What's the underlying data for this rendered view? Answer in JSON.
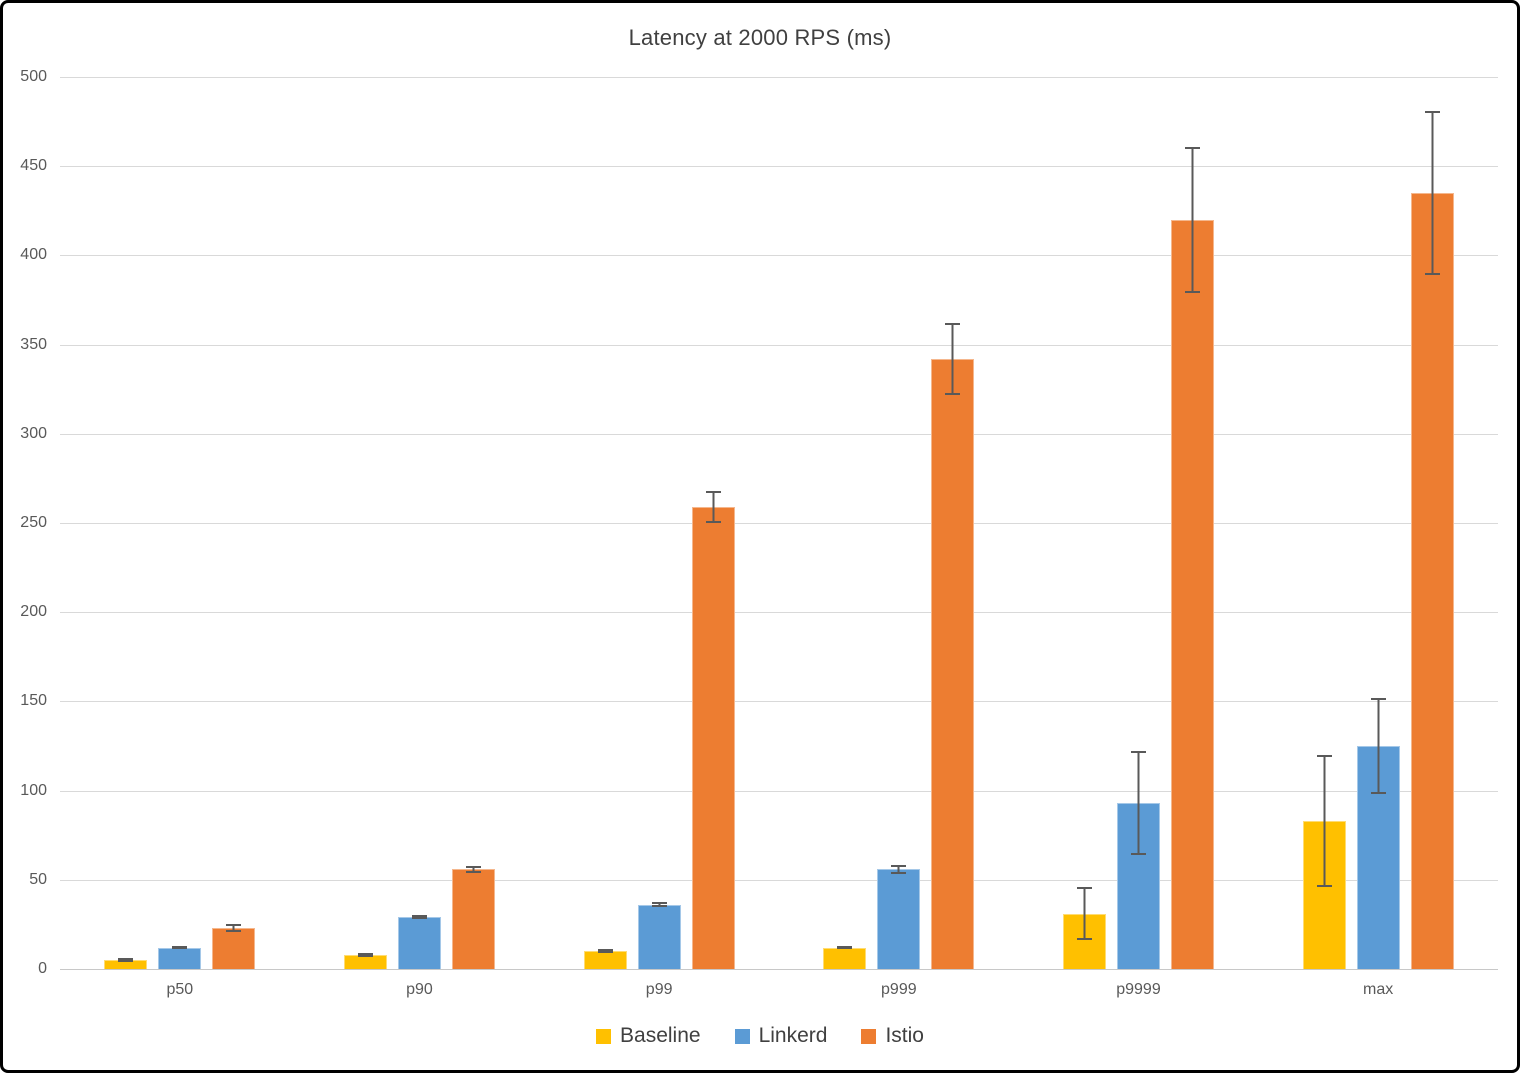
{
  "chart_data": {
    "type": "bar",
    "title": "Latency at 2000 RPS (ms)",
    "xlabel": "",
    "ylabel": "",
    "categories": [
      "p50",
      "p90",
      "p99",
      "p999",
      "p9999",
      "max"
    ],
    "series": [
      {
        "name": "Baseline",
        "color": "#FFC000",
        "values": [
          5,
          8,
          10,
          12,
          31,
          83
        ],
        "errors": [
          1,
          1,
          1,
          1,
          15,
          37
        ]
      },
      {
        "name": "Linkerd",
        "color": "#5B9BD5",
        "values": [
          12,
          29,
          36,
          56,
          93,
          125
        ],
        "errors": [
          1,
          1,
          1.5,
          2.5,
          29,
          27
        ]
      },
      {
        "name": "Istio",
        "color": "#ED7D31",
        "values": [
          23,
          56,
          259,
          342,
          420,
          435
        ],
        "errors": [
          2.5,
          2,
          9,
          20,
          41,
          46
        ]
      }
    ],
    "ylim": [
      0,
      500
    ],
    "yticks": [
      0,
      50,
      100,
      150,
      200,
      250,
      300,
      350,
      400,
      450,
      500
    ],
    "grid": true,
    "error_bars": true,
    "legend_position": "bottom"
  },
  "style": {
    "gridline_color": "#D9D9D9",
    "axis_line_color": "#C8C8C8",
    "tick_label_color": "#595959",
    "title_color": "#404040",
    "error_bar_color": "#595959",
    "border_color": "#000000",
    "background_color": "#FFFFFF"
  }
}
